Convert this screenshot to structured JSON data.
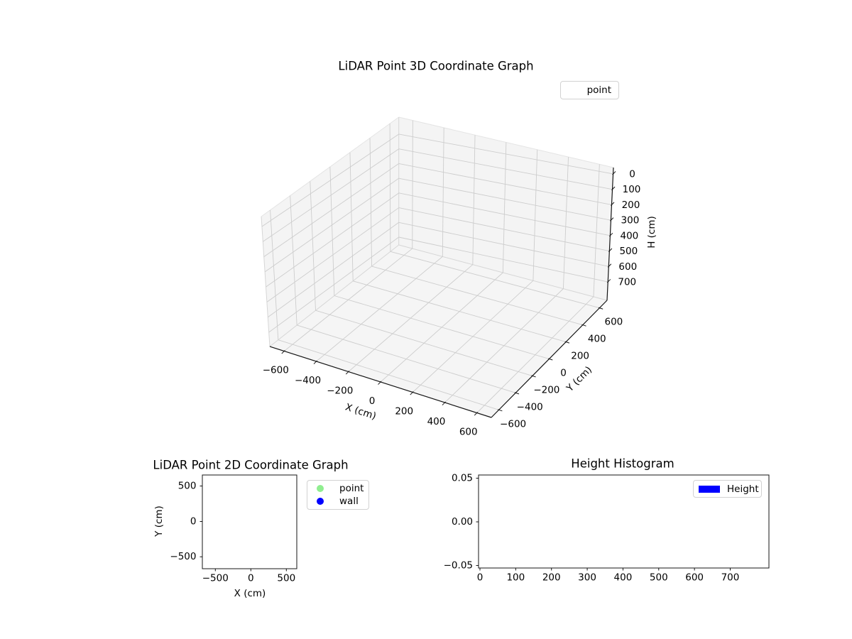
{
  "figure": {
    "background": "#ffffff"
  },
  "plot3d": {
    "title": "LiDAR Point 3D Coordinate Graph",
    "xlabel": "X (cm)",
    "ylabel": "Y (cm)",
    "zlabel": "H (cm)",
    "xticks": [
      "−600",
      "−400",
      "−200",
      "0",
      "200",
      "400",
      "600"
    ],
    "yticks": [
      "−600",
      "−400",
      "−200",
      "0",
      "200",
      "400",
      "600"
    ],
    "zticks": [
      "0",
      "100",
      "200",
      "300",
      "400",
      "500",
      "600",
      "700"
    ],
    "legend": {
      "items": [
        {
          "label": "point",
          "marker": "none"
        }
      ]
    }
  },
  "plot2d": {
    "title": "LiDAR Point 2D Coordinate Graph",
    "xlabel": "X (cm)",
    "ylabel": "Y (cm)",
    "xticks": [
      "−500",
      "0",
      "500"
    ],
    "yticks": [
      "500",
      "0",
      "−500"
    ],
    "legend": {
      "items": [
        {
          "label": "point",
          "color": "#90ee90",
          "marker": "circle"
        },
        {
          "label": "wall",
          "color": "#0000ff",
          "marker": "circle"
        }
      ]
    }
  },
  "histogram": {
    "title": "Height Histogram",
    "xticks": [
      "0",
      "100",
      "200",
      "300",
      "400",
      "500",
      "600",
      "700"
    ],
    "yticks": [
      "0.05",
      "0.00",
      "−0.05"
    ],
    "legend": {
      "items": [
        {
          "label": "Height",
          "color": "#0000ff",
          "marker": "rect"
        }
      ]
    }
  },
  "colors": {
    "pane": "#f4f4f4",
    "floor_pane": "#f5f5f5",
    "grid": "#cdcdcd",
    "edge_top": "#e4e4e4",
    "edge_junction": "#d6d6d6",
    "spine": "#141414",
    "point_green": "#90ee90",
    "wall_blue": "#0000ff"
  },
  "chart_data": [
    {
      "type": "scatter",
      "projection": "3d",
      "title": "LiDAR Point 3D Coordinate Graph",
      "xlabel": "X (cm)",
      "ylabel": "Y (cm)",
      "zlabel": "H (cm)",
      "xlim": [
        -700,
        700
      ],
      "ylim": [
        -700,
        700
      ],
      "zlim": [
        0,
        700
      ],
      "zaxis_inverted": true,
      "grid": true,
      "legend_position": "upper right",
      "series": [
        {
          "name": "point",
          "points": []
        }
      ]
    },
    {
      "type": "scatter",
      "title": "LiDAR Point 2D Coordinate Graph",
      "xlabel": "X (cm)",
      "ylabel": "Y (cm)",
      "xlim": [
        -680,
        660
      ],
      "ylim": [
        -660,
        660
      ],
      "grid": false,
      "legend_position": "outside right",
      "series": [
        {
          "name": "point",
          "color": "#90ee90",
          "points": []
        },
        {
          "name": "wall",
          "color": "#0000ff",
          "points": []
        }
      ]
    },
    {
      "type": "bar",
      "title": "Height Histogram",
      "xlim": [
        0,
        790
      ],
      "ylim": [
        -0.055,
        0.055
      ],
      "grid": false,
      "legend_position": "upper right",
      "series": [
        {
          "name": "Height",
          "color": "#0000ff",
          "values": []
        }
      ]
    }
  ]
}
